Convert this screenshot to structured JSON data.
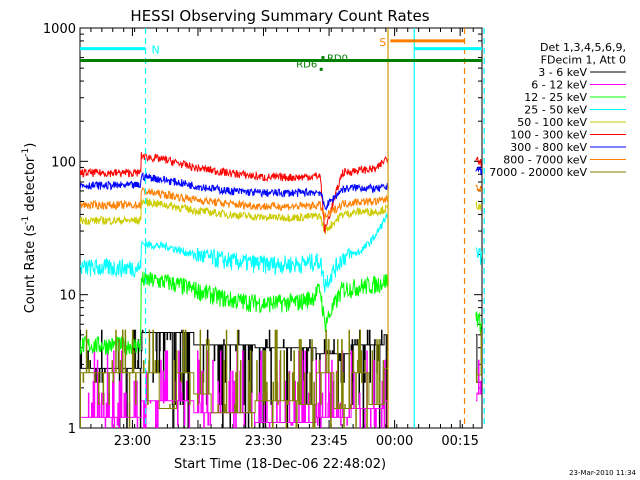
{
  "chart_data": {
    "type": "line",
    "title": "HESSI Observing Summary Count Rates",
    "xlabel": "Start Time (18-Dec-06 22:48:02)",
    "ylabel": "Count Rate (s⁻¹ detector⁻¹)",
    "ylabel_base": "Count Rate (s",
    "ylabel_mid": " detector",
    "ylabel_end": ")",
    "ylabel_exp": "-1",
    "yscale": "log",
    "ylim": [
      1,
      1000
    ],
    "xlim": [
      0,
      92
    ],
    "x_units": "minutes after 22:48:02",
    "yticks": [
      {
        "value": 1,
        "label": "1"
      },
      {
        "value": 10,
        "label": "10"
      },
      {
        "value": 100,
        "label": "100"
      },
      {
        "value": 1000,
        "label": "1000"
      }
    ],
    "xticks": [
      {
        "t": 12,
        "label": "23:00"
      },
      {
        "t": 27,
        "label": "23:15"
      },
      {
        "t": 42,
        "label": "23:30"
      },
      {
        "t": 57,
        "label": "23:45"
      },
      {
        "t": 72,
        "label": "00:00"
      },
      {
        "t": 87,
        "label": "00:15"
      }
    ],
    "legend_header": [
      "Det 1,3,4,5,6,9,",
      "FDecim 1, Att 0"
    ],
    "legend_placement": "right",
    "gaps": [
      [
        70.5,
        90.5
      ]
    ],
    "series": [
      {
        "name": "3 - 6 keV",
        "color": "#000000",
        "style": "step",
        "x": [
          0,
          14,
          26,
          40,
          54,
          62,
          69.5,
          90.8,
          92
        ],
        "y": [
          2.8,
          5.2,
          4.2,
          4.0,
          3.6,
          4.2,
          5.0,
          2.2,
          2.0
        ]
      },
      {
        "name": "6 - 12 keV",
        "color": "#ff00ff",
        "style": "step",
        "x": [
          0,
          14,
          26,
          40,
          54,
          62,
          69.5,
          90.8,
          92
        ],
        "y": [
          1.2,
          1.6,
          1.3,
          1.1,
          1.2,
          1.4,
          1.6,
          1.8,
          1.6
        ]
      },
      {
        "name": "12 - 25 keV",
        "color": "#00ff00",
        "style": "line",
        "x": [
          0,
          13.9,
          14,
          20,
          26,
          34,
          42,
          50,
          53,
          55,
          56,
          60,
          64,
          68,
          70,
          90.8,
          91.5,
          92
        ],
        "y": [
          4.2,
          4.2,
          13,
          12.5,
          11,
          9.2,
          8.6,
          8.8,
          9.5,
          11,
          6,
          11,
          11.5,
          12,
          12.8,
          7.0,
          6.2,
          5.8
        ]
      },
      {
        "name": "25 - 50 keV",
        "color": "#00ffff",
        "style": "line",
        "x": [
          0,
          13.9,
          14,
          20,
          26,
          34,
          42,
          50,
          55,
          56,
          60,
          64,
          66,
          68,
          70,
          90.8,
          91.5,
          92
        ],
        "y": [
          16,
          16,
          24,
          23,
          20,
          18,
          17,
          17,
          18,
          12,
          19,
          21,
          24,
          29,
          38,
          21,
          19.5,
          19
        ]
      },
      {
        "name": "50 - 100 keV",
        "color": "#cccc00",
        "style": "line",
        "x": [
          0,
          13.9,
          14,
          20,
          26,
          34,
          42,
          50,
          55,
          56,
          60,
          64,
          68,
          70,
          90.8,
          91.5,
          92
        ],
        "y": [
          36,
          36,
          50,
          47,
          43,
          40,
          38,
          38,
          39,
          30,
          40,
          42,
          42,
          44,
          47,
          45,
          44
        ]
      },
      {
        "name": "100 - 300 keV",
        "color": "#ff0000",
        "style": "line",
        "x": [
          0,
          13.9,
          14,
          20,
          26,
          34,
          42,
          50,
          55,
          56,
          60,
          64,
          68,
          70,
          90.8,
          91.5,
          92
        ],
        "y": [
          82,
          82,
          110,
          102,
          90,
          82,
          76,
          76,
          78,
          30,
          82,
          86,
          88,
          105,
          108,
          100,
          96
        ]
      },
      {
        "name": "300 - 800 keV",
        "color": "#0000ff",
        "style": "line",
        "x": [
          0,
          13.9,
          14,
          20,
          26,
          34,
          42,
          50,
          55,
          56,
          60,
          64,
          68,
          70,
          90.8,
          91.5,
          92
        ],
        "y": [
          66,
          66,
          78,
          72,
          66,
          60,
          58,
          58,
          59,
          45,
          62,
          64,
          62,
          64,
          90,
          86,
          84
        ]
      },
      {
        "name": "800 - 7000 keV",
        "color": "#ff8000",
        "style": "line",
        "x": [
          0,
          13.9,
          14,
          20,
          26,
          34,
          42,
          50,
          55,
          56,
          60,
          64,
          68,
          70,
          90.8,
          91.5,
          92
        ],
        "y": [
          47,
          47,
          60,
          56,
          52,
          48,
          46,
          46,
          47,
          38,
          48,
          50,
          50,
          52,
          66,
          62,
          60
        ]
      },
      {
        "name": "7000 - 20000 keV",
        "color": "#808000",
        "style": "step",
        "x": [
          0,
          14,
          18,
          22,
          26,
          30,
          40,
          50,
          54,
          58,
          62,
          66,
          69.5,
          90.8,
          92
        ],
        "y": [
          2.6,
          2.6,
          1.4,
          2.6,
          1.8,
          1.3,
          1.6,
          1.5,
          2.6,
          1.4,
          2.6,
          1.5,
          2.8,
          2.5,
          2.2
        ]
      }
    ],
    "annotations": {
      "vlines": [
        {
          "t": 15,
          "color": "#00ffff",
          "style": "dash"
        },
        {
          "t": 70.5,
          "color": "#cc9900",
          "style": "solid"
        },
        {
          "t": 76.5,
          "color": "#00ffff",
          "style": "solid"
        },
        {
          "t": 88,
          "color": "#ff8000",
          "style": "dash"
        },
        {
          "t": 92.5,
          "color": "#00ffff",
          "style": "dash"
        }
      ],
      "bars": [
        {
          "label": "N",
          "t0": 0,
          "t1": 15,
          "value": 700,
          "color": "#00ffff"
        },
        {
          "label": "",
          "t0": 76.5,
          "t1": 92.5,
          "value": 700,
          "color": "#00ffff"
        },
        {
          "label": "S",
          "t0": 71,
          "t1": 88,
          "value": 800,
          "color": "#ff8000"
        },
        {
          "label": "",
          "t0": 0,
          "t1": 92.5,
          "value": 570,
          "color": "#008000"
        }
      ],
      "points": [
        {
          "label": "RD6",
          "t": 55.2,
          "value": 490,
          "color": "#008000"
        },
        {
          "label": "RD0",
          "t": 55.6,
          "value": 600,
          "color": "#008000"
        }
      ]
    },
    "timestamp": "23-Mar-2010 11:34"
  }
}
